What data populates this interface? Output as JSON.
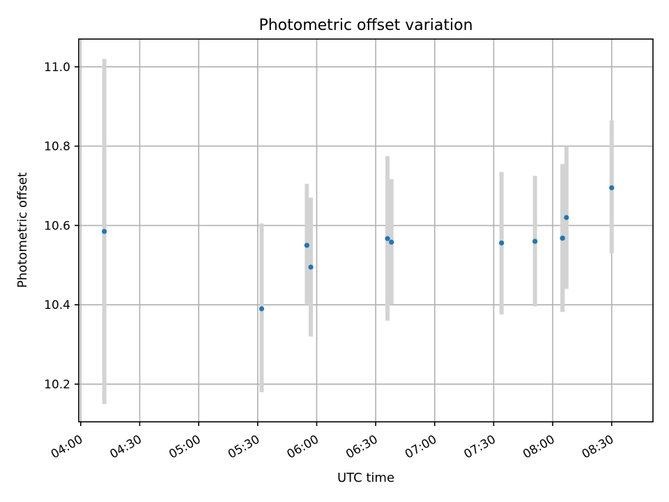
{
  "chart_data": {
    "type": "scatter",
    "title": "Photometric offset variation",
    "xlabel": "UTC time",
    "ylabel": "Photometric offset",
    "x_unit": "UTC time (HH:MM)",
    "xlim": [
      "03:59",
      "08:51"
    ],
    "ylim": [
      10.105,
      11.07
    ],
    "xticks": [
      "04:00",
      "04:30",
      "05:00",
      "05:30",
      "06:00",
      "06:30",
      "07:00",
      "07:30",
      "08:00",
      "08:30"
    ],
    "yticks": [
      10.2,
      10.4,
      10.6,
      10.8,
      11.0
    ],
    "grid": true,
    "marker_color": "#1f77b4",
    "errorbar_color": "#d3d3d3",
    "points": [
      {
        "x": "04:12",
        "y": 10.585,
        "ylow": 10.15,
        "yhigh": 11.02
      },
      {
        "x": "05:32",
        "y": 10.39,
        "ylow": 10.18,
        "yhigh": 10.605
      },
      {
        "x": "05:55",
        "y": 10.55,
        "ylow": 10.4,
        "yhigh": 10.705
      },
      {
        "x": "05:57",
        "y": 10.495,
        "ylow": 10.32,
        "yhigh": 10.67
      },
      {
        "x": "06:36",
        "y": 10.567,
        "ylow": 10.36,
        "yhigh": 10.775
      },
      {
        "x": "06:38",
        "y": 10.558,
        "ylow": 10.4,
        "yhigh": 10.717
      },
      {
        "x": "07:34",
        "y": 10.556,
        "ylow": 10.376,
        "yhigh": 10.735
      },
      {
        "x": "07:51",
        "y": 10.56,
        "ylow": 10.396,
        "yhigh": 10.725
      },
      {
        "x": "08:05",
        "y": 10.568,
        "ylow": 10.388,
        "yhigh": 10.75
      },
      {
        "x": "08:05",
        "y": 10.568,
        "ylow": 10.382,
        "yhigh": 10.755
      },
      {
        "x": "08:07",
        "y": 10.62,
        "ylow": 10.44,
        "yhigh": 10.8
      },
      {
        "x": "08:30",
        "y": 10.695,
        "ylow": 10.53,
        "yhigh": 10.865
      }
    ]
  }
}
